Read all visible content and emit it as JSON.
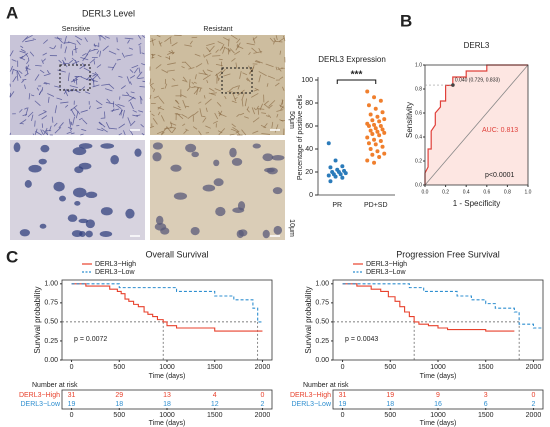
{
  "figure": {
    "panel_labels": [
      "A",
      "B",
      "C"
    ],
    "panel_a": {
      "title": "DERL3 Level",
      "columns": [
        "Sensitive",
        "Resistant"
      ],
      "scale_bars": [
        "50μm",
        "10μm"
      ]
    }
  },
  "chart_data": [
    {
      "type": "strip",
      "title": "DERL3 Expression",
      "categories": [
        "PR",
        "PD+SD"
      ],
      "colors": [
        "#2b7bba",
        "#f07f2d"
      ],
      "values": [
        [
          45,
          30,
          25,
          24,
          22,
          21,
          20,
          20,
          19,
          18,
          18,
          17,
          16,
          15,
          12
        ],
        [
          90,
          85,
          82,
          78,
          75,
          72,
          70,
          68,
          66,
          65,
          64,
          62,
          61,
          60,
          60,
          58,
          57,
          56,
          55,
          54,
          53,
          52,
          50,
          48,
          47,
          45,
          44,
          42,
          40,
          38,
          36,
          35,
          33,
          30,
          28
        ]
      ],
      "ylabel": "Percentage of positive cells",
      "ylim": [
        0,
        100
      ],
      "yticks": [
        0,
        20,
        40,
        60,
        80,
        100
      ],
      "annotation": "***"
    },
    {
      "type": "roc",
      "title": "DERL3",
      "color": "#e0403a",
      "fill": "#fde6e2",
      "x": [
        0,
        0,
        0.03,
        0.03,
        0.06,
        0.06,
        0.1,
        0.1,
        0.15,
        0.15,
        0.2,
        0.2,
        0.27,
        0.27,
        0.4,
        0.4,
        0.6,
        0.6,
        1
      ],
      "y": [
        0,
        0.1,
        0.15,
        0.3,
        0.3,
        0.45,
        0.5,
        0.6,
        0.65,
        0.7,
        0.7,
        0.83,
        0.83,
        0.9,
        0.9,
        0.95,
        0.95,
        1,
        1
      ],
      "xlim": [
        0,
        1
      ],
      "ylim": [
        0,
        1
      ],
      "xticks": [
        {
          "value": 0,
          "label": "0.0"
        },
        {
          "value": 0.2,
          "label": "0.2"
        },
        {
          "value": 0.4,
          "label": "0.4"
        },
        {
          "value": 0.6,
          "label": "0.6"
        },
        {
          "value": 0.8,
          "label": "0.8"
        },
        {
          "value": 1,
          "label": "1.0"
        }
      ],
      "yticks": [
        {
          "value": 0,
          "label": "0.0"
        },
        {
          "value": 0.2,
          "label": "0.2"
        },
        {
          "value": 0.4,
          "label": "0.4"
        },
        {
          "value": 0.6,
          "label": "0.6"
        },
        {
          "value": 0.8,
          "label": "0.8"
        },
        {
          "value": 1,
          "label": "1.0"
        }
      ],
      "xlabel": "1 - Specificity",
      "ylabel": "Sensitivity",
      "cutoff_point": [
        0.271,
        0.833
      ],
      "cutoff_label": "0.040 (0.729, 0.833)",
      "auc_label": "AUC: 0.813",
      "p_label": "p<0.0001"
    },
    {
      "type": "km",
      "title": "Overall Survival",
      "series": [
        {
          "name": "DERL3−High",
          "color": "#e8412c",
          "x": [
            0,
            150,
            250,
            400,
            480,
            520,
            560,
            600,
            650,
            700,
            760,
            800,
            850,
            900,
            960,
            1000,
            1100,
            1300,
            1500,
            2000
          ],
          "values": [
            1,
            0.97,
            0.97,
            0.93,
            0.9,
            0.87,
            0.8,
            0.77,
            0.73,
            0.7,
            0.63,
            0.6,
            0.57,
            0.53,
            0.5,
            0.45,
            0.42,
            0.42,
            0.38,
            0.38
          ]
        },
        {
          "name": "DERL3−Low",
          "color": "#2f8fd0",
          "x": [
            0,
            500,
            900,
            1100,
            1500,
            1700,
            1900,
            1950,
            2000
          ],
          "values": [
            1,
            0.95,
            0.95,
            0.9,
            0.84,
            0.79,
            0.68,
            0.5,
            0.5
          ]
        }
      ],
      "xlim": [
        -100,
        2100
      ],
      "ylim": [
        0,
        1.05
      ],
      "xticks": [
        0,
        500,
        1000,
        1500,
        2000
      ],
      "yticks": [
        {
          "value": 0,
          "label": "0.00"
        },
        {
          "value": 0.25,
          "label": "0.25"
        },
        {
          "value": 0.5,
          "label": "0.50"
        },
        {
          "value": 0.75,
          "label": "0.75"
        },
        {
          "value": 1,
          "label": "1.00"
        }
      ],
      "xlabel": "Time (days)",
      "ylabel": "Survival probability",
      "p_label": "p = 0.0072",
      "median_y": 0.5,
      "medians": [
        960,
        1950
      ],
      "risk_table": {
        "title": "Number at risk",
        "rows": [
          [
            31,
            29,
            13,
            4,
            0
          ],
          [
            19,
            18,
            18,
            12,
            2
          ]
        ]
      }
    },
    {
      "type": "km",
      "title": "Progression Free Survival",
      "series": [
        {
          "name": "DERL3−High",
          "color": "#e8412c",
          "x": [
            0,
            150,
            300,
            400,
            480,
            550,
            600,
            650,
            700,
            750,
            800,
            900,
            1000,
            1100,
            1300,
            1500,
            1800
          ],
          "values": [
            1,
            0.97,
            0.93,
            0.9,
            0.83,
            0.77,
            0.7,
            0.63,
            0.57,
            0.5,
            0.47,
            0.45,
            0.42,
            0.4,
            0.4,
            0.38,
            0.38
          ]
        },
        {
          "name": "DERL3−Low",
          "color": "#2f8fd0",
          "x": [
            0,
            700,
            850,
            1200,
            1350,
            1500,
            1600,
            1800,
            1850,
            2000,
            2100
          ],
          "values": [
            1,
            0.95,
            0.9,
            0.84,
            0.79,
            0.74,
            0.68,
            0.63,
            0.47,
            0.42,
            0.42
          ]
        }
      ],
      "xlim": [
        -100,
        2100
      ],
      "ylim": [
        0,
        1.05
      ],
      "xticks": [
        0,
        500,
        1000,
        1500,
        2000
      ],
      "yticks": [
        {
          "value": 0,
          "label": "0.00"
        },
        {
          "value": 0.25,
          "label": "0.25"
        },
        {
          "value": 0.5,
          "label": "0.50"
        },
        {
          "value": 0.75,
          "label": "0.75"
        },
        {
          "value": 1,
          "label": "1.00"
        }
      ],
      "xlabel": "Time (days)",
      "ylabel": "Survival probability",
      "p_label": "p = 0.0043",
      "median_y": 0.5,
      "medians": [
        750,
        1850
      ],
      "risk_table": {
        "title": "Number at risk",
        "rows": [
          [
            31,
            19,
            9,
            3,
            0
          ],
          [
            19,
            18,
            16,
            6,
            2
          ]
        ]
      }
    }
  ]
}
